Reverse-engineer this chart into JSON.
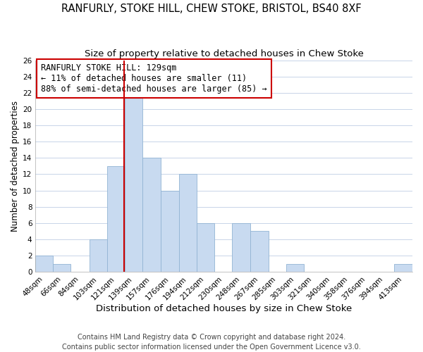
{
  "title": "RANFURLY, STOKE HILL, CHEW STOKE, BRISTOL, BS40 8XF",
  "subtitle": "Size of property relative to detached houses in Chew Stoke",
  "xlabel": "Distribution of detached houses by size in Chew Stoke",
  "ylabel": "Number of detached properties",
  "footer_line1": "Contains HM Land Registry data © Crown copyright and database right 2024.",
  "footer_line2": "Contains public sector information licensed under the Open Government Licence v3.0.",
  "annotation_line1": "RANFURLY STOKE HILL: 129sqm",
  "annotation_line2": "← 11% of detached houses are smaller (11)",
  "annotation_line3": "88% of semi-detached houses are larger (85) →",
  "bar_centers": [
    48,
    66,
    84,
    103,
    121,
    139,
    157,
    176,
    194,
    212,
    230,
    248,
    267,
    285,
    303,
    321,
    340,
    358,
    376,
    394,
    413
  ],
  "bar_values": [
    2,
    1,
    0,
    4,
    13,
    22,
    14,
    10,
    12,
    6,
    0,
    6,
    5,
    0,
    1,
    0,
    0,
    0,
    0,
    0,
    1
  ],
  "bar_labels": [
    "48sqm",
    "66sqm",
    "84sqm",
    "103sqm",
    "121sqm",
    "139sqm",
    "157sqm",
    "176sqm",
    "194sqm",
    "212sqm",
    "230sqm",
    "248sqm",
    "267sqm",
    "285sqm",
    "303sqm",
    "321sqm",
    "340sqm",
    "358sqm",
    "376sqm",
    "394sqm",
    "413sqm"
  ],
  "bar_color": "#c8daf0",
  "bar_edge_color": "#92b4d4",
  "reference_line_x": 129,
  "reference_line_color": "#cc0000",
  "ylim": [
    0,
    26
  ],
  "yticks": [
    0,
    2,
    4,
    6,
    8,
    10,
    12,
    14,
    16,
    18,
    20,
    22,
    24,
    26
  ],
  "background_color": "#ffffff",
  "grid_color": "#c8d4e8",
  "title_fontsize": 10.5,
  "subtitle_fontsize": 9.5,
  "xlabel_fontsize": 9.5,
  "ylabel_fontsize": 8.5,
  "tick_fontsize": 7.5,
  "annotation_fontsize": 8.5,
  "footer_fontsize": 7.0
}
